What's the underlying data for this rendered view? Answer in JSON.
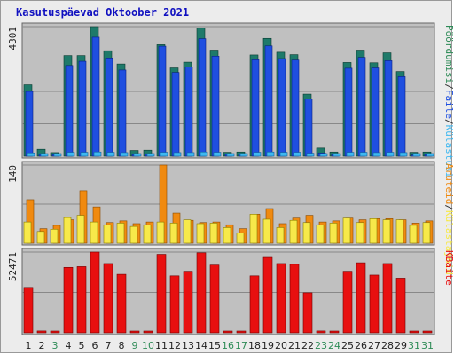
{
  "title": "Kasutuspäevad Oktoober 2021",
  "colors": {
    "visits": "#2e8b57",
    "pages": "#1f4fe0",
    "files": "#3fb8f0",
    "hits": "#1e7a6a",
    "sites": "#f7e94a",
    "visitors": "#f08a10",
    "kbytes": "#e81010",
    "weekday_label": "#222222",
    "weekend_label": "#2e8b57",
    "panel_bg": "#c0c0c0"
  },
  "chart_data": [
    {
      "type": "bar",
      "title": "",
      "ylabel_max": "4301",
      "ylim": [
        0,
        4301
      ],
      "legend_side": "right",
      "legend": [
        {
          "text": "Pöördumisi",
          "color": "#2e8b57"
        },
        {
          "text": "/",
          "color": "#333333"
        },
        {
          "text": "Faile",
          "color": "#1f4fe0"
        },
        {
          "text": "/",
          "color": "#333333"
        },
        {
          "text": "Külastusi",
          "color": "#3fb8f0"
        }
      ],
      "categories": [
        "1",
        "2",
        "3",
        "4",
        "5",
        "6",
        "7",
        "8",
        "9",
        "10",
        "11",
        "12",
        "13",
        "14",
        "15",
        "16",
        "17",
        "18",
        "19",
        "20",
        "21",
        "22",
        "23",
        "24",
        "25",
        "26",
        "27",
        "28",
        "29",
        "31",
        "31"
      ],
      "series": [
        {
          "name": "Pöördumisi",
          "values": [
            2370,
            230,
            120,
            3340,
            3340,
            4301,
            3500,
            3060,
            190,
            200,
            3700,
            2930,
            3120,
            4250,
            3520,
            130,
            140,
            3360,
            3910,
            3450,
            3370,
            2060,
            270,
            140,
            3110,
            3520,
            3100,
            3430,
            2810,
            130,
            140
          ]
        },
        {
          "name": "Faile",
          "values": [
            2150,
            60,
            60,
            3010,
            3150,
            3950,
            3260,
            2860,
            60,
            80,
            3650,
            2780,
            2960,
            3900,
            3320,
            70,
            70,
            3200,
            3660,
            3240,
            3190,
            1900,
            110,
            60,
            2920,
            3280,
            2930,
            3170,
            2640,
            40,
            60
          ]
        },
        {
          "name": "Külastusi",
          "values": [
            110,
            80,
            70,
            130,
            130,
            140,
            130,
            120,
            70,
            70,
            130,
            120,
            120,
            140,
            130,
            60,
            70,
            130,
            140,
            130,
            130,
            100,
            80,
            70,
            130,
            130,
            120,
            130,
            120,
            60,
            70
          ]
        }
      ]
    },
    {
      "type": "bar",
      "title": "",
      "ylabel_max": "140",
      "ylim": [
        0,
        140
      ],
      "legend_side": "right",
      "legend": [
        {
          "text": "Aruteid",
          "color": "#f08a10"
        },
        {
          "text": "/",
          "color": "#333333"
        },
        {
          "text": "Külastajaid",
          "color": "#f7e94a"
        }
      ],
      "categories": [
        "1",
        "2",
        "3",
        "4",
        "5",
        "6",
        "7",
        "8",
        "9",
        "10",
        "11",
        "12",
        "13",
        "14",
        "15",
        "16",
        "17",
        "18",
        "19",
        "20",
        "21",
        "22",
        "23",
        "24",
        "25",
        "26",
        "27",
        "28",
        "29",
        "31",
        "31"
      ],
      "series": [
        {
          "name": "Aruteid",
          "values": [
            78,
            26,
            32,
            42,
            94,
            65,
            37,
            40,
            35,
            38,
            140,
            54,
            41,
            37,
            38,
            33,
            26,
            52,
            62,
            35,
            45,
            50,
            38,
            40,
            45,
            42,
            44,
            44,
            42,
            36,
            40
          ]
        },
        {
          "name": "Külastajaid",
          "values": [
            38,
            21,
            25,
            46,
            50,
            38,
            33,
            36,
            30,
            33,
            38,
            36,
            42,
            35,
            36,
            28,
            18,
            52,
            43,
            28,
            41,
            37,
            33,
            36,
            45,
            37,
            44,
            42,
            42,
            32,
            37
          ]
        }
      ]
    },
    {
      "type": "bar",
      "title": "",
      "ylabel_max": "52471",
      "ylim": [
        0,
        52471
      ],
      "legend_side": "right",
      "legend": [
        {
          "text": "KBaite",
          "color": "#e81010"
        }
      ],
      "categories": [
        "1",
        "2",
        "3",
        "4",
        "5",
        "6",
        "7",
        "8",
        "9",
        "10",
        "11",
        "12",
        "13",
        "14",
        "15",
        "16",
        "17",
        "18",
        "19",
        "20",
        "21",
        "22",
        "23",
        "24",
        "25",
        "26",
        "27",
        "28",
        "29",
        "31",
        "31"
      ],
      "series": [
        {
          "name": "KBaite",
          "values": [
            29500,
            1200,
            600,
            42500,
            43000,
            52471,
            45000,
            38000,
            700,
            1100,
            51000,
            37000,
            40000,
            52000,
            44000,
            900,
            900,
            37000,
            49000,
            45000,
            44500,
            26000,
            1200,
            1000,
            40000,
            45500,
            37500,
            45000,
            35500,
            500,
            600
          ]
        }
      ]
    }
  ],
  "days": [
    {
      "label": "1",
      "weekend": false
    },
    {
      "label": "2",
      "weekend": false
    },
    {
      "label": "3",
      "weekend": true
    },
    {
      "label": "4",
      "weekend": false
    },
    {
      "label": "5",
      "weekend": false
    },
    {
      "label": "6",
      "weekend": false
    },
    {
      "label": "7",
      "weekend": false
    },
    {
      "label": "8",
      "weekend": false
    },
    {
      "label": "9",
      "weekend": true
    },
    {
      "label": "10",
      "weekend": true
    },
    {
      "label": "11",
      "weekend": false
    },
    {
      "label": "12",
      "weekend": false
    },
    {
      "label": "13",
      "weekend": false
    },
    {
      "label": "14",
      "weekend": false
    },
    {
      "label": "15",
      "weekend": false
    },
    {
      "label": "16",
      "weekend": true
    },
    {
      "label": "17",
      "weekend": true
    },
    {
      "label": "18",
      "weekend": false
    },
    {
      "label": "19",
      "weekend": false
    },
    {
      "label": "20",
      "weekend": false
    },
    {
      "label": "21",
      "weekend": false
    },
    {
      "label": "22",
      "weekend": false
    },
    {
      "label": "23",
      "weekend": true
    },
    {
      "label": "24",
      "weekend": true
    },
    {
      "label": "25",
      "weekend": false
    },
    {
      "label": "26",
      "weekend": false
    },
    {
      "label": "27",
      "weekend": false
    },
    {
      "label": "28",
      "weekend": false
    },
    {
      "label": "29",
      "weekend": false
    },
    {
      "label": "31",
      "weekend": true
    },
    {
      "label": "31",
      "weekend": true
    }
  ]
}
